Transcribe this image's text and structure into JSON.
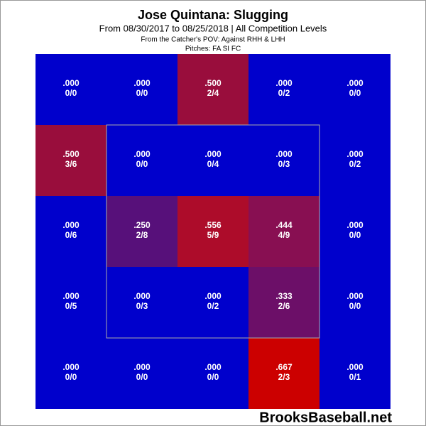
{
  "chart_data": {
    "type": "heatmap",
    "title": "Jose Quintana: Slugging",
    "subtitle": "From 08/30/2017 to 08/25/2018 | All Competition Levels",
    "notes": [
      "From the Catcher's POV:  Against RHH & LHH",
      "Pitches:  FA  SI  FC"
    ],
    "values": [
      [
        0,
        0,
        0.5,
        0,
        0
      ],
      [
        0.5,
        0,
        0,
        0,
        0
      ],
      [
        0,
        0.25,
        0.556,
        0.444,
        0
      ],
      [
        0,
        0,
        0,
        0.333,
        0
      ],
      [
        0,
        0,
        0,
        0.667,
        0
      ]
    ],
    "value_labels": [
      [
        ".000",
        ".000",
        ".500",
        ".000",
        ".000"
      ],
      [
        ".500",
        ".000",
        ".000",
        ".000",
        ".000"
      ],
      [
        ".000",
        ".250",
        ".556",
        ".444",
        ".000"
      ],
      [
        ".000",
        ".000",
        ".000",
        ".333",
        ".000"
      ],
      [
        ".000",
        ".000",
        ".000",
        ".667",
        ".000"
      ]
    ],
    "counts": [
      [
        "0/0",
        "0/0",
        "2/4",
        "0/2",
        "0/0"
      ],
      [
        "3/6",
        "0/0",
        "0/4",
        "0/3",
        "0/2"
      ],
      [
        "0/6",
        "2/8",
        "5/9",
        "4/9",
        "0/0"
      ],
      [
        "0/5",
        "0/3",
        "0/2",
        "2/6",
        "0/0"
      ],
      [
        "0/0",
        "0/0",
        "0/0",
        "2/3",
        "0/1"
      ]
    ],
    "colors": [
      [
        "#0000cc",
        "#0000cc",
        "#990d3c",
        "#0000cc",
        "#0000cc"
      ],
      [
        "#990d3c",
        "#0000cc",
        "#0000cc",
        "#0000cc",
        "#0000cc"
      ],
      [
        "#0000cc",
        "#57107a",
        "#ad0c2a",
        "#880f52",
        "#0000cc"
      ],
      [
        "#0000cc",
        "#0000cc",
        "#0000cc",
        "#6c0f68",
        "#0000cc"
      ],
      [
        "#0000cc",
        "#0000cc",
        "#0000cc",
        "#cc0000",
        "#0000cc"
      ]
    ],
    "watermark": "BrooksBaseball.net"
  }
}
